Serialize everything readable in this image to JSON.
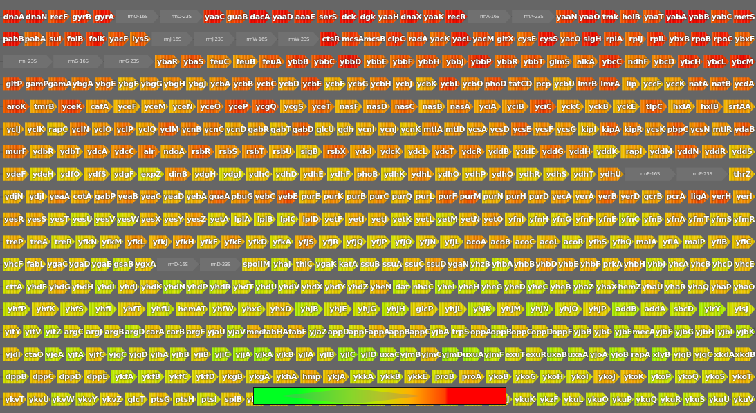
{
  "colors": {
    "background": "#666666",
    "low": "#00ff22",
    "mid": "#c8e000",
    "high": "#ff0000",
    "rrna": "#707070"
  },
  "rows": [
    {
      "level": 0.92,
      "genes": [
        "dnaA",
        "dnaN",
        "recF",
        "gyrB",
        "gyrA",
        "rrnO-16S",
        "rrnO-23S",
        "yaaC",
        "guaB",
        "dacA",
        "yaaD",
        "aaaE",
        "serS",
        "dck",
        "dgk",
        "yaaH",
        "dnaX",
        "yaaK",
        "recR",
        "rrnA-16S",
        "rrnA-23S",
        "yaaN",
        "yaaO",
        "tmk",
        "holB",
        "yaaT",
        "yabA",
        "yabB",
        "yabC",
        "metS"
      ]
    },
    {
      "level": 0.85,
      "genes": [
        "pabB",
        "pabA",
        "sul",
        "folB",
        "folK",
        "yacF",
        "lysS",
        "rrnJ-16S",
        "rrnJ-23S",
        "rrnW-16S",
        "rrnW-23S",
        "ctsR",
        "mcsA",
        "mcsB",
        "clpC",
        "radA",
        "yacK",
        "yacL",
        "yacM",
        "gltX",
        "cysE",
        "cysS",
        "yacO",
        "sigH",
        "rplA",
        "rplJ",
        "rplL",
        "ybxB",
        "rpoB",
        "rpoC",
        "ybxF"
      ]
    },
    {
      "level": 0.8,
      "genes": [
        "rrnI-23S",
        "rrnG-16S",
        "rrnG-23S",
        "ybaR",
        "ybaS",
        "feuC",
        "feuB",
        "feuA",
        "ybbB",
        "ybbC",
        "ybbD",
        "ybbE",
        "ybbF",
        "ybbH",
        "ybbJ",
        "ybbP",
        "ybbR",
        "ybbT",
        "glmS",
        "alkA",
        "ybcC",
        "ndhF",
        "ybcD",
        "ybcH",
        "ybcL",
        "ybcM"
      ]
    },
    {
      "level": 0.72,
      "genes": [
        "gltP",
        "gamP",
        "gamA",
        "ybgA",
        "ybgE",
        "ybgF",
        "ybgG",
        "ybgH",
        "ybgJ",
        "ycbA",
        "ycbB",
        "ycbC",
        "ycbD",
        "ycbE",
        "ycbF",
        "ycbG",
        "ycbH",
        "ycbJ",
        "ycbK",
        "ycbL",
        "ycbO",
        "phoD",
        "tatCD",
        "pcp",
        "ycbU",
        "lmrB",
        "lmrA",
        "lip",
        "yccF",
        "yccK",
        "natA",
        "natB",
        "ycdA"
      ]
    },
    {
      "level": 0.75,
      "genes": [
        "aroK",
        "tmrB",
        "yceK",
        "cafA",
        "yceF",
        "yceM",
        "yceN",
        "yceO",
        "yceP",
        "ycgQ",
        "ycgS",
        "yceT",
        "nasF",
        "nasD",
        "nasC",
        "nasB",
        "nasA",
        "yciA",
        "yciB",
        "yciC",
        "yckC",
        "yckB",
        "yckE",
        "tlpC",
        "hxlA",
        "hxlB",
        "srfAA"
      ]
    },
    {
      "level": 0.68,
      "genes": [
        "yclJ",
        "yclK",
        "rapC",
        "yclN",
        "yclO",
        "yclP",
        "yclQ",
        "yclM",
        "ycnB",
        "ycnC",
        "ycnD",
        "gabR",
        "gabT",
        "gabD",
        "glcU",
        "gdh",
        "ycnI",
        "ycnJ",
        "ycnK",
        "mtlA",
        "mtlD",
        "ycsA",
        "ycsD",
        "ycsE",
        "ycsF",
        "ycsG",
        "kipI",
        "kipA",
        "kipR",
        "ycsK",
        "pbpC",
        "ycsN",
        "mtlR",
        "ydaB"
      ]
    },
    {
      "level": 0.66,
      "genes": [
        "murF",
        "ydbR",
        "ydbT",
        "ydcA",
        "ydcC",
        "alr",
        "ndoA",
        "rsbR",
        "rsbS",
        "rsbT",
        "rsbU",
        "sigB",
        "rsbX",
        "ydcI",
        "ydcK",
        "ydcL",
        "ydcT",
        "ydcR",
        "yddB",
        "yddE",
        "yddG",
        "yddH",
        "yddK",
        "rapI",
        "yddM",
        "yddN",
        "yddR",
        "yddS"
      ]
    },
    {
      "level": 0.6,
      "genes": [
        "ydeF",
        "ydeH",
        "ydfO",
        "ydfS",
        "ydgF",
        "expZ",
        "dinB",
        "ydgH",
        "ydgJ",
        "ydhC",
        "ydhD",
        "ydhE",
        "ydhF",
        "phoB",
        "ydhK",
        "ydhL",
        "ydhO",
        "ydhP",
        "ydhQ",
        "ydhR",
        "ydhS",
        "ydhT",
        "ydhU",
        "rrnE-16S",
        "rrnE-23S",
        "thrZ"
      ]
    },
    {
      "level": 0.7,
      "genes": [
        "ydjN",
        "ydjI",
        "yeaA",
        "cotA",
        "gabP",
        "yeaB",
        "yeaC",
        "yeaD",
        "yebA",
        "guaA",
        "pbuG",
        "yebC",
        "yebE",
        "purE",
        "purK",
        "purB",
        "purC",
        "purQ",
        "purL",
        "purF",
        "purM",
        "purN",
        "purH",
        "purD",
        "yecA",
        "yerA",
        "yerB",
        "yerD",
        "gcrB",
        "pcrA",
        "ligA",
        "yerH",
        "yerI"
      ]
    },
    {
      "level": 0.55,
      "genes": [
        "yesR",
        "yesS",
        "yesT",
        "yesU",
        "yesV",
        "yesW",
        "yesX",
        "yesY",
        "yesZ",
        "yetA",
        "lplA",
        "lplB",
        "lplC",
        "lplD",
        "yetF",
        "yetI",
        "yetJ",
        "yetK",
        "yetL",
        "yetM",
        "yetN",
        "yetO",
        "yfnI",
        "yfnH",
        "yfnG",
        "yfnF",
        "yfnE",
        "yfnC",
        "yfnB",
        "yfnA",
        "yfmT",
        "yfmS",
        "yfmR"
      ]
    },
    {
      "level": 0.58,
      "genes": [
        "treP",
        "treA",
        "treR",
        "yfkN",
        "yfkM",
        "yfkL",
        "yfkJ",
        "yfkH",
        "yfkF",
        "yfkE",
        "yfkD",
        "yfkA",
        "yfjS",
        "yfjR",
        "yfjQ",
        "yfjP",
        "yfjO",
        "yfjN",
        "yfjL",
        "acoA",
        "acoB",
        "acoC",
        "acoL",
        "acoR",
        "yfhS",
        "yfhQ",
        "malA",
        "yfiA",
        "malP",
        "yfiB",
        "yfiC"
      ]
    },
    {
      "level": 0.55,
      "genes": [
        "yhcF",
        "fabL",
        "ygaC",
        "ygaD",
        "ygaE",
        "gsaB",
        "ygxA",
        "rrnD-16S",
        "rrnD-23S",
        "spoIIM",
        "yhaJ",
        "thiC",
        "ygaK",
        "katA",
        "ssuB",
        "ssuA",
        "ssuC",
        "ssuD",
        "ygaN",
        "yhzB",
        "yhbA",
        "yhbB",
        "yhbD",
        "yhbE",
        "yhbF",
        "prkA",
        "yhbH",
        "yhbJ",
        "yhcA",
        "yhcB",
        "yhcD",
        "yhcE"
      ]
    },
    {
      "level": 0.5,
      "genes": [
        "cttA",
        "yhdF",
        "yhdG",
        "yhdH",
        "yhdI",
        "yhdJ",
        "yhdK",
        "yhdN",
        "yhdP",
        "yhdR",
        "yhdT",
        "yhdU",
        "yhdV",
        "yhdX",
        "yhdY",
        "yhdZ",
        "yheN",
        "dat",
        "nhaC",
        "yheI",
        "yheH",
        "yheG",
        "yheD",
        "yheC",
        "yheB",
        "yhaZ",
        "yhaX",
        "hemZ",
        "yhaU",
        "yhaR",
        "yhaQ",
        "yhaP",
        "yhaO"
      ]
    },
    {
      "level": 0.48,
      "genes": [
        "yhfP",
        "yhfK",
        "yhfS",
        "yhfI",
        "yhfT",
        "yhfU",
        "hemAT",
        "yhfW",
        "yhxC",
        "yhxD",
        "yhjB",
        "yhjE",
        "yhjG",
        "yhjH",
        "glcP",
        "yhjL",
        "yhjK",
        "yhjM",
        "yhjN",
        "yhjO",
        "yhjP",
        "addB",
        "addA",
        "sbcD",
        "yirY",
        "yisJ"
      ]
    },
    {
      "level": 0.5,
      "genes": [
        "yitY",
        "yitV",
        "yitZ",
        "argC",
        "argJ",
        "argB",
        "argD",
        "carA",
        "carB",
        "argF",
        "yjaU",
        "yjaV",
        "med",
        "fabHA",
        "fabF",
        "yjaZ",
        "appD",
        "appF",
        "appA",
        "appB",
        "appC",
        "yjbA",
        "trpS",
        "oppA",
        "oppB",
        "oppC",
        "oppD",
        "oppF",
        "yjbB",
        "yjbC",
        "yjbE",
        "mecA",
        "yjbF",
        "yjbG",
        "yjbH",
        "yjbI",
        "yjbK"
      ]
    },
    {
      "level": 0.45,
      "genes": [
        "yjdI",
        "ctaO",
        "yjeA",
        "yjfA",
        "yjfC",
        "yjgC",
        "yjgD",
        "yjhA",
        "yjhB",
        "yjiB",
        "yjiC",
        "yjjA",
        "yjkA",
        "yjkB",
        "yjlA",
        "yjlB",
        "yjlC",
        "yjlD",
        "uxaC",
        "yjmB",
        "yjmC",
        "yjmD",
        "uxuA",
        "yjmF",
        "exuT",
        "exuR",
        "uxaB",
        "uxaA",
        "yjoA",
        "yjoB",
        "rapA",
        "xlyB",
        "yjqB",
        "yjqC",
        "xkdA",
        "xkdB"
      ]
    },
    {
      "level": 0.52,
      "genes": [
        "dppB",
        "dppC",
        "dppD",
        "dppE",
        "ykfA",
        "ykfB",
        "ykfC",
        "ykfD",
        "ykgB",
        "ykgA",
        "ykhA",
        "hmp",
        "ykjA",
        "ykkA",
        "ykkB",
        "ykkE",
        "proB",
        "proA",
        "ykoB",
        "ykoG",
        "ykoH",
        "ykoI",
        "ykoJ",
        "ykoK",
        "ykoP",
        "ykoQ",
        "ykoS",
        "ykoT"
      ]
    },
    {
      "level": 0.5,
      "genes": [
        "ykvT",
        "ykvU",
        "ykvW",
        "ykvY",
        "ykvZ",
        "glcT",
        "ptsG",
        "ptsH",
        "ptsI",
        "splB",
        "ykwB",
        "mcpC",
        "ykwC",
        "ykuA",
        "kinA",
        "ykuC",
        "ykuF",
        "ykuG",
        "ykuH",
        "ykuI",
        "ykuJ",
        "ykuK",
        "ykzF",
        "ykuL",
        "ykuO",
        "ykuP",
        "ykuQ",
        "ykuR",
        "ykuS",
        "ykuU",
        "ykuV"
      ]
    }
  ],
  "legend": {
    "min_color": "#00ff22",
    "max_color": "#ff0000"
  }
}
